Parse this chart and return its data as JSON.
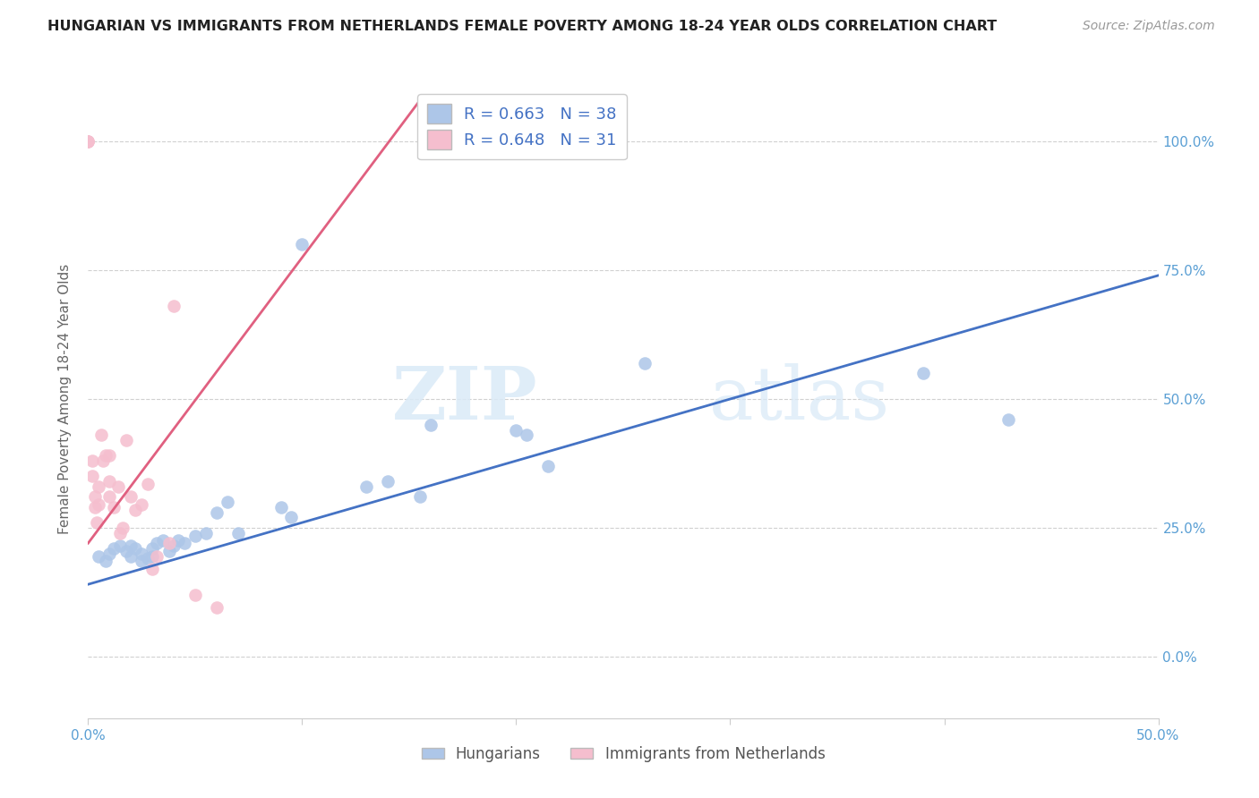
{
  "title": "HUNGARIAN VS IMMIGRANTS FROM NETHERLANDS FEMALE POVERTY AMONG 18-24 YEAR OLDS CORRELATION CHART",
  "source": "Source: ZipAtlas.com",
  "ylabel": "Female Poverty Among 18-24 Year Olds",
  "blue_R": 0.663,
  "blue_N": 38,
  "pink_R": 0.648,
  "pink_N": 31,
  "blue_color": "#adc6e8",
  "pink_color": "#f5bece",
  "blue_line_color": "#4472c4",
  "pink_line_color": "#e06080",
  "legend_blue_label": "Hungarians",
  "legend_pink_label": "Immigrants from Netherlands",
  "xlim": [
    0.0,
    0.5
  ],
  "ylim": [
    -0.12,
    1.12
  ],
  "xtick_positions": [
    0.0,
    0.1,
    0.2,
    0.3,
    0.4,
    0.5
  ],
  "xtick_labels": [
    "0.0%",
    "",
    "",
    "",
    "",
    "50.0%"
  ],
  "ytick_positions": [
    0.0,
    0.25,
    0.5,
    0.75,
    1.0
  ],
  "ytick_labels": [
    "0.0%",
    "25.0%",
    "50.0%",
    "75.0%",
    "100.0%"
  ],
  "watermark_zip": "ZIP",
  "watermark_atlas": "atlas",
  "blue_x": [
    0.005,
    0.008,
    0.01,
    0.012,
    0.015,
    0.018,
    0.02,
    0.02,
    0.022,
    0.025,
    0.025,
    0.028,
    0.03,
    0.03,
    0.032,
    0.035,
    0.038,
    0.04,
    0.042,
    0.045,
    0.05,
    0.055,
    0.06,
    0.065,
    0.07,
    0.09,
    0.095,
    0.1,
    0.13,
    0.14,
    0.155,
    0.16,
    0.2,
    0.205,
    0.215,
    0.26,
    0.39,
    0.43
  ],
  "blue_y": [
    0.195,
    0.185,
    0.2,
    0.21,
    0.215,
    0.205,
    0.195,
    0.215,
    0.21,
    0.185,
    0.2,
    0.19,
    0.195,
    0.21,
    0.22,
    0.225,
    0.205,
    0.215,
    0.225,
    0.22,
    0.235,
    0.24,
    0.28,
    0.3,
    0.24,
    0.29,
    0.27,
    0.8,
    0.33,
    0.34,
    0.31,
    0.45,
    0.44,
    0.43,
    0.37,
    0.57,
    0.55,
    0.46
  ],
  "pink_x": [
    0.0,
    0.0,
    0.0,
    0.002,
    0.002,
    0.003,
    0.003,
    0.004,
    0.005,
    0.005,
    0.006,
    0.007,
    0.008,
    0.01,
    0.01,
    0.01,
    0.012,
    0.014,
    0.015,
    0.016,
    0.018,
    0.02,
    0.022,
    0.025,
    0.028,
    0.03,
    0.032,
    0.038,
    0.04,
    0.05,
    0.06
  ],
  "pink_y": [
    1.0,
    1.0,
    1.0,
    0.35,
    0.38,
    0.29,
    0.31,
    0.26,
    0.295,
    0.33,
    0.43,
    0.38,
    0.39,
    0.39,
    0.34,
    0.31,
    0.29,
    0.33,
    0.24,
    0.25,
    0.42,
    0.31,
    0.285,
    0.295,
    0.335,
    0.17,
    0.195,
    0.22,
    0.68,
    0.12,
    0.095
  ],
  "blue_trend_x0": 0.0,
  "blue_trend_x1": 0.5,
  "blue_trend_y0": 0.14,
  "blue_trend_y1": 0.74,
  "pink_trend_x0": 0.0,
  "pink_trend_x1": 0.155,
  "pink_trend_y0": 0.22,
  "pink_trend_y1": 1.08
}
